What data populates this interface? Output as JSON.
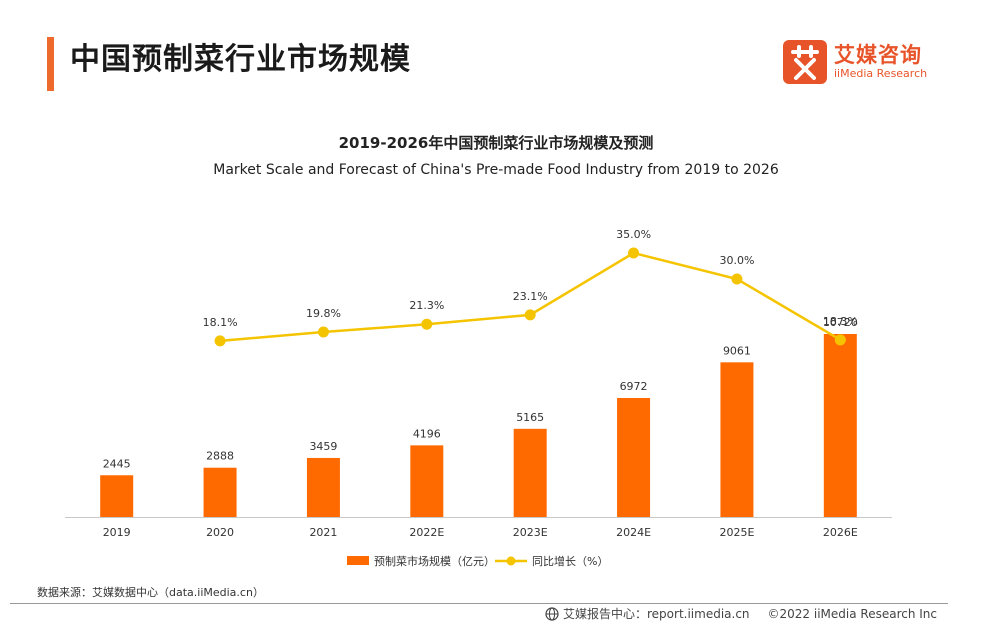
{
  "header": {
    "title": "中国预制菜行业市场规模",
    "logo_cn": "艾媒咨询",
    "logo_en": "iiMedia Research",
    "accent_color": "#ee6a2c"
  },
  "chart_data": {
    "type": "bar",
    "title": "2019-2026年中国预制菜行业市场规模及预测",
    "subtitle": "Market Scale and Forecast of China's Pre-made Food Industry from 2019 to 2026",
    "categories": [
      "2019",
      "2020",
      "2021",
      "2022E",
      "2023E",
      "2024E",
      "2025E",
      "2026E"
    ],
    "series": [
      {
        "name": "预制菜市场规模（亿元）",
        "type": "bar",
        "color": "#ff6a00",
        "values": [
          2445,
          2888,
          3459,
          4196,
          5165,
          6972,
          9061,
          10720
        ],
        "labels": [
          "2445",
          "2888",
          "3459",
          "4196",
          "5165",
          "6972",
          "9061",
          "10720"
        ]
      },
      {
        "name": "同比增长（%）",
        "type": "line",
        "color": "#f5c400",
        "values": [
          null,
          18.1,
          19.8,
          21.3,
          23.1,
          35.0,
          30.0,
          18.3
        ],
        "labels": [
          "",
          "18.1%",
          "19.8%",
          "21.3%",
          "23.1%",
          "35.0%",
          "30.0%",
          "18.3%"
        ]
      }
    ],
    "bar_axis_range": [
      0,
      13000
    ],
    "line_axis_range": [
      0,
      40
    ],
    "legend": "bottom",
    "grid": false
  },
  "footer": {
    "source": "数据来源：艾媒数据中心（data.iiMedia.cn）",
    "report_center": "艾媒报告中心：report.iimedia.cn",
    "copyright": "©2022  iiMedia Research  Inc"
  }
}
